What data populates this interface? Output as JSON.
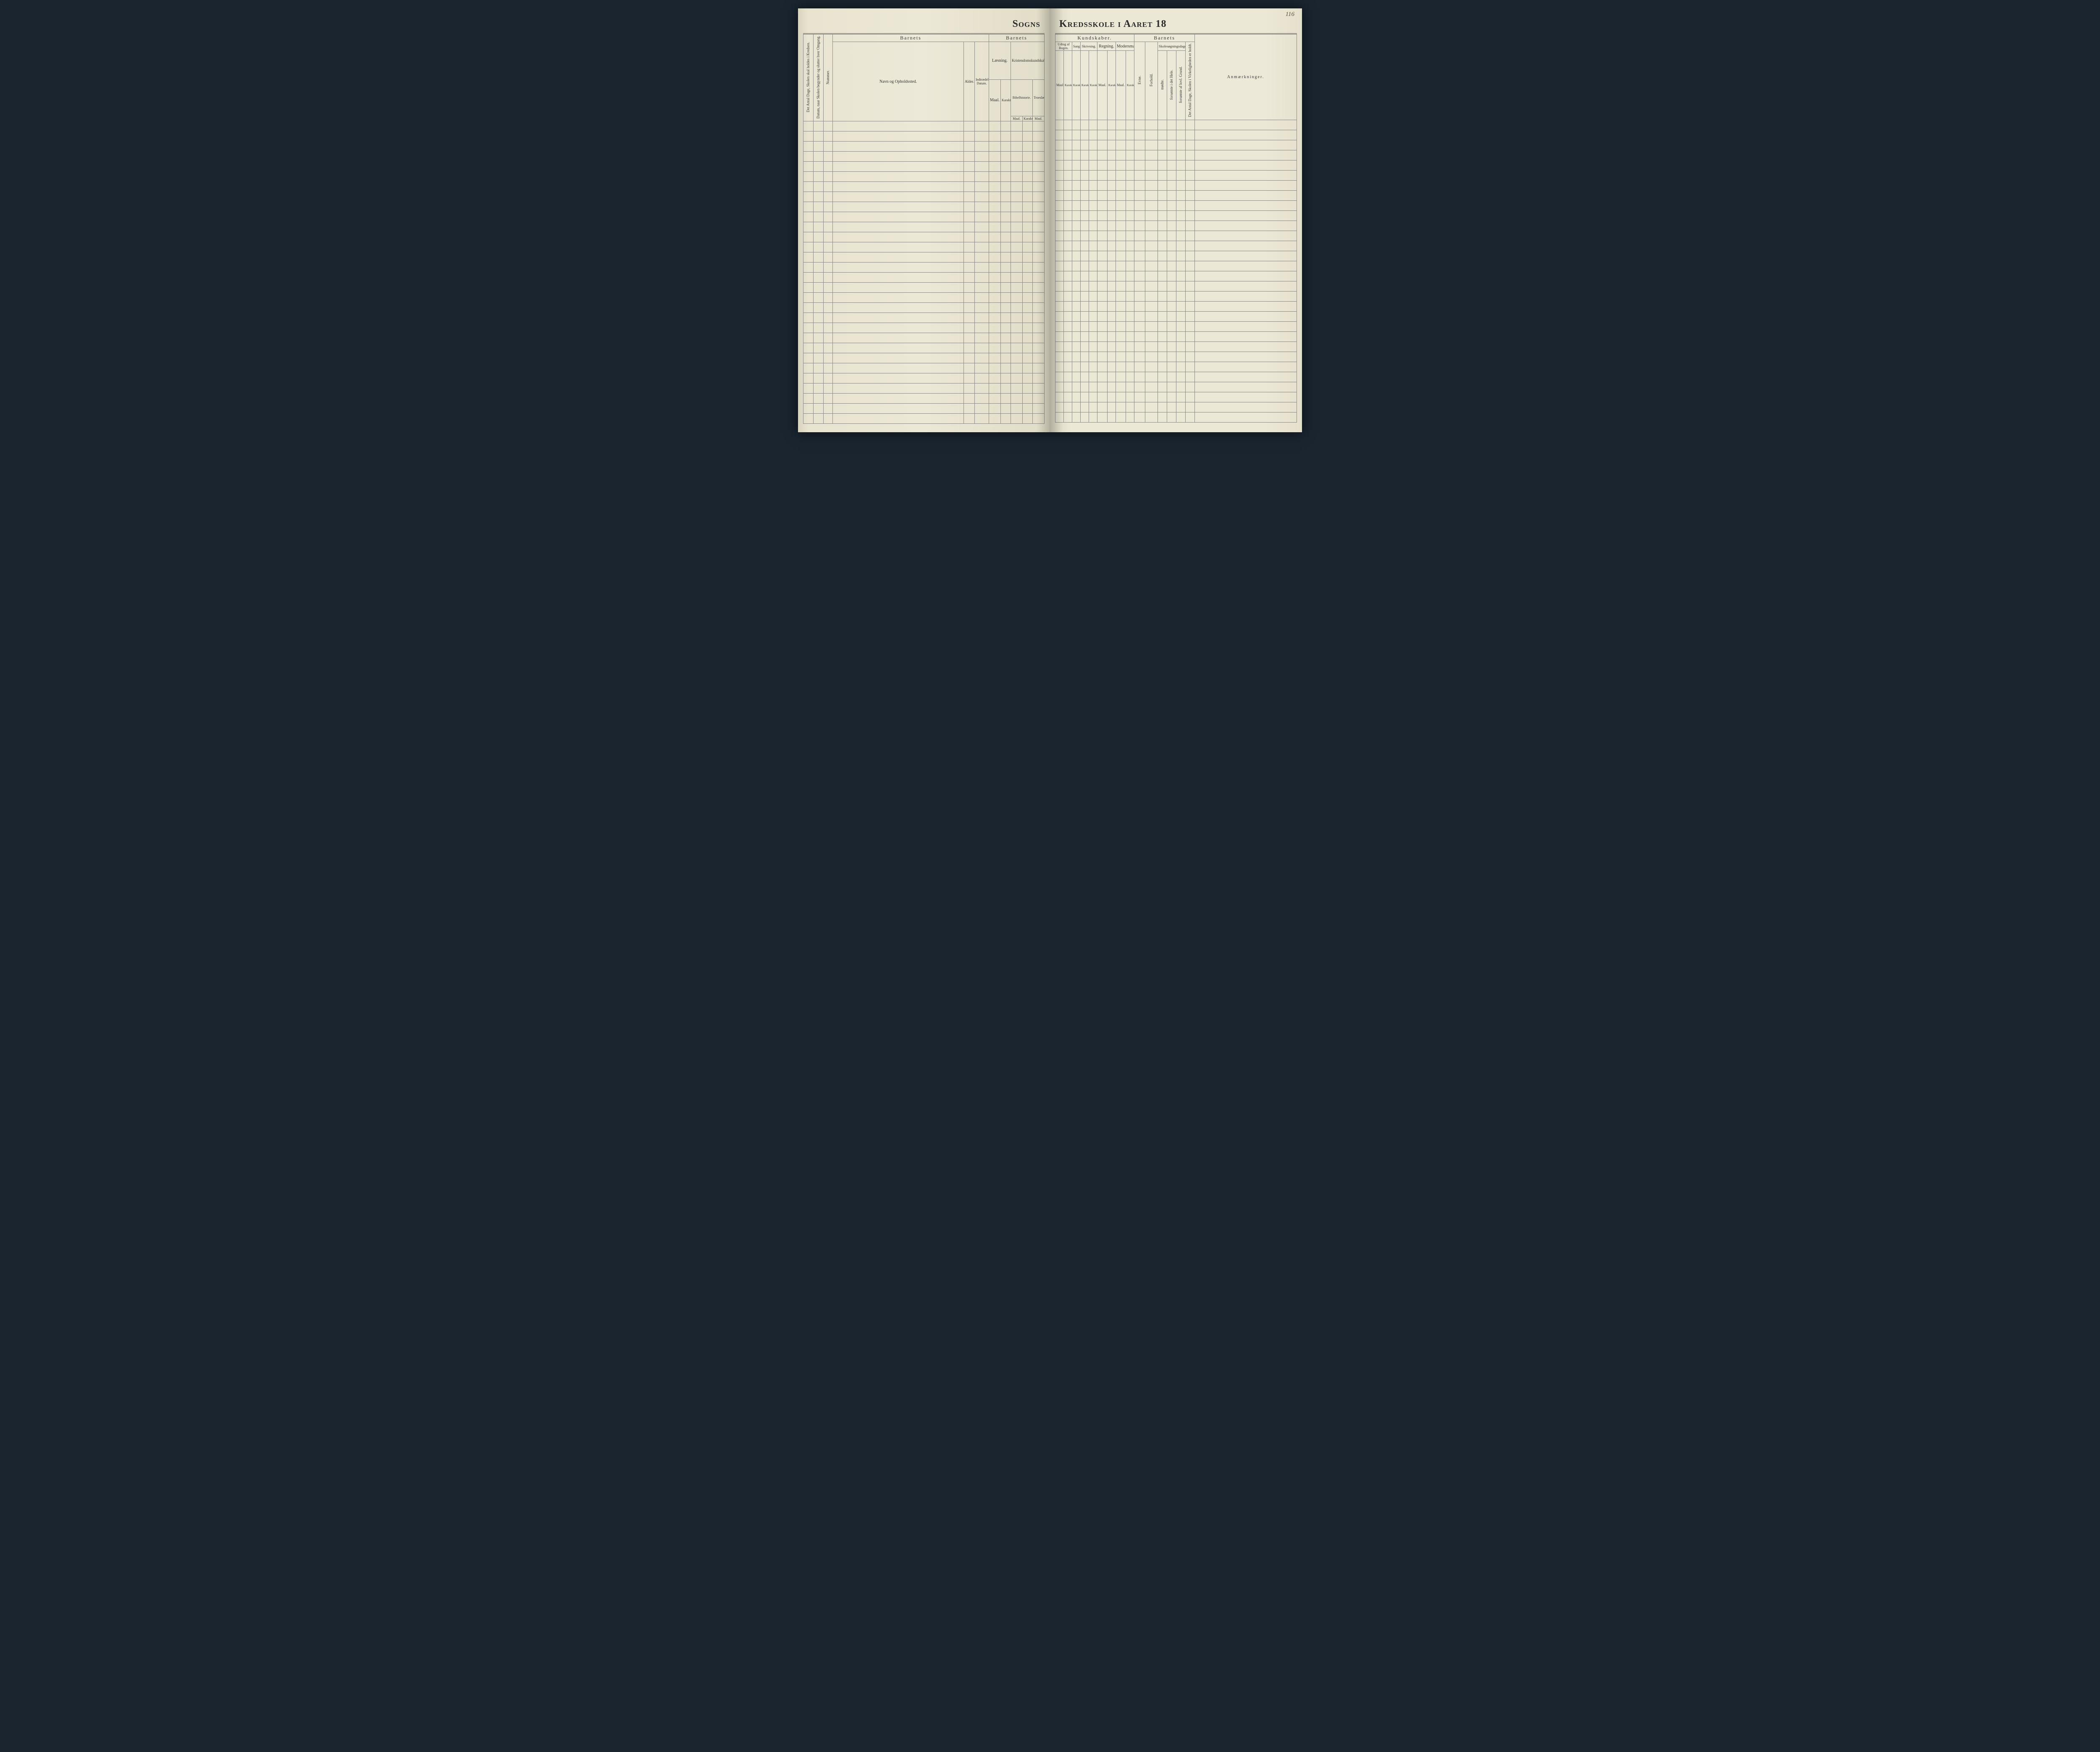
{
  "pageNumber": "116",
  "title": {
    "left": "Sogns",
    "right": "Kredsskole i Aaret 18"
  },
  "left": {
    "verticalHeaders": {
      "antalDage": "Det Antal Dage, Skolen skal holdes i Kredsen.",
      "datum": "Datum, naar Skolen begynder og slutter hver Omgang.",
      "nummer": "Nummer."
    },
    "barnets": "Barnets",
    "navn": "Navn og Opholdssted.",
    "alder": "Alder.",
    "indtraedelse": "Indtrædelses-Datum.",
    "laesning": "Læsning.",
    "kristendom": "Kristendomskundskab.",
    "bibelhistorie": "Bibelhistorie.",
    "troeslaere": "Troeslære.",
    "maal": "Maal.",
    "karakter": "Karakter."
  },
  "right": {
    "kundskaber": "Kundskaber.",
    "barnets": "Barnets",
    "udtogBogen": "Udtog af Bogen.",
    "sang": "Sang.",
    "skrivning": "Skrivning.",
    "regning": "Regning.",
    "modersmaal": "Modersmaal.",
    "maal": "Maal.",
    "karakter": "Karakter.",
    "evne": "Evne.",
    "forhold": "Forhold.",
    "skolesogning": "Skolesøgningsdage.",
    "modte": "mødte.",
    "forsomteHele": "forsømte i det Hele.",
    "forsomteGrund": "forsømte af lovl. Grund.",
    "antalDageHoldt": "Det Antal Dage, Skolen i Virkeligheden er holdt.",
    "anmaerkninger": "Anmærkninger."
  },
  "rowCount": 30
}
